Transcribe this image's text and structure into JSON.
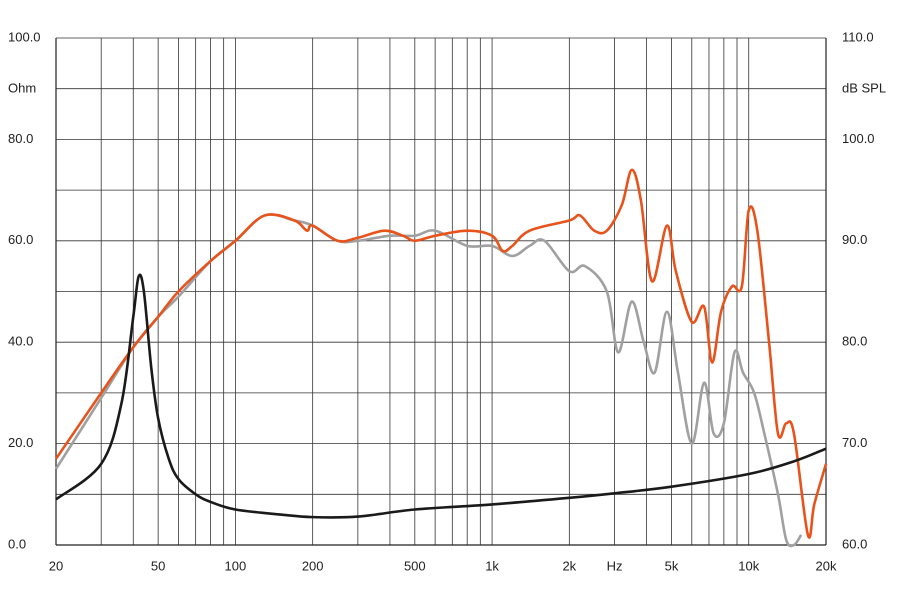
{
  "chart_data": {
    "type": "line",
    "y_label": "Ohm",
    "y2_label": "dB SPL",
    "log_x": true,
    "grid": true,
    "xlim": [
      20,
      20000
    ],
    "ylim": [
      0,
      100
    ],
    "y2lim": [
      60,
      110
    ],
    "xticks": [
      20,
      50,
      100,
      200,
      500,
      {
        "value": 1000,
        "label": "1k"
      },
      {
        "value": 2000,
        "label": "2k"
      },
      {
        "value": 3000,
        "label": "Hz"
      },
      {
        "value": 5000,
        "label": "5k"
      },
      {
        "value": 10000,
        "label": "10k"
      },
      {
        "value": 20000,
        "label": "20k"
      }
    ],
    "xgrid": [
      20,
      30,
      40,
      50,
      60,
      70,
      80,
      90,
      100,
      200,
      300,
      400,
      500,
      600,
      700,
      800,
      900,
      1000,
      2000,
      3000,
      4000,
      5000,
      6000,
      7000,
      8000,
      9000,
      10000,
      20000
    ],
    "yticks": [
      {
        "value": 0,
        "label": "0.0"
      },
      {
        "value": 20,
        "label": "20.0"
      },
      {
        "value": 40,
        "label": "40.0"
      },
      {
        "value": 60,
        "label": "60.0"
      },
      {
        "value": 80,
        "label": "80.0"
      },
      {
        "value": 100,
        "label": "100.0"
      }
    ],
    "ygrid": [
      10,
      30,
      50,
      70,
      90
    ],
    "y2ticks": [
      {
        "value": 60,
        "label": "60.0"
      },
      {
        "value": 70,
        "label": "70.0"
      },
      {
        "value": 80,
        "label": "80.0"
      },
      {
        "value": 90,
        "label": "90.0"
      },
      {
        "value": 100,
        "label": "100.0"
      },
      {
        "value": 110,
        "label": "110.0"
      }
    ],
    "series": [
      {
        "color": "#1a1a1a",
        "x": [
          20,
          30,
          36,
          40,
          42,
          44,
          47,
          50,
          55,
          60,
          70,
          80,
          100,
          150,
          200,
          300,
          500,
          1000,
          2000,
          3000,
          5000,
          10000,
          15000,
          20000
        ],
        "values": [
          9,
          16,
          28,
          45,
          53,
          50,
          35,
          25,
          17,
          13,
          10,
          8.5,
          7,
          6,
          5.5,
          5.6,
          7,
          8,
          9.3,
          10.2,
          11.5,
          14,
          16.5,
          19
        ]
      },
      {
        "color": "#e8531c",
        "axis": "y2",
        "x": [
          20,
          30,
          40,
          50,
          60,
          80,
          100,
          130,
          170,
          190,
          200,
          250,
          300,
          380,
          450,
          500,
          600,
          800,
          1000,
          1100,
          1200,
          1400,
          2000,
          2200,
          2500,
          2800,
          3200,
          3500,
          3800,
          4200,
          4800,
          5200,
          6000,
          6700,
          7200,
          7800,
          8600,
          9400,
          10000,
          10800,
          12000,
          13000,
          14000,
          15000,
          17000,
          18000,
          20000
        ],
        "values": [
          68.5,
          75,
          79.5,
          82.5,
          85,
          88,
          90,
          92.5,
          92,
          91,
          91.5,
          90,
          90.3,
          91,
          90.5,
          90,
          90.5,
          91,
          90.5,
          89,
          89.5,
          91,
          92,
          92.5,
          91,
          91,
          93.5,
          97,
          94,
          86,
          91.5,
          87,
          82,
          83.5,
          78,
          83,
          85.5,
          85.5,
          93,
          91,
          80,
          71,
          72,
          71,
          61,
          64,
          68
        ]
      },
      {
        "color": "#a0a0a0",
        "axis": "y2",
        "x": [
          20,
          30,
          40,
          50,
          60,
          80,
          100,
          130,
          170,
          200,
          250,
          300,
          400,
          500,
          600,
          800,
          1000,
          1200,
          1400,
          1600,
          2000,
          2300,
          2800,
          3100,
          3500,
          3900,
          4300,
          4800,
          5300,
          6000,
          6700,
          7300,
          8000,
          8800,
          9500,
          10500,
          11500,
          13000,
          14000,
          15000,
          16000
        ],
        "values": [
          67.5,
          74.5,
          79.5,
          82.5,
          84.5,
          88,
          90,
          92.5,
          92,
          91.5,
          90,
          90,
          90.5,
          90.5,
          91,
          89.5,
          89.5,
          88.5,
          89.5,
          90,
          87,
          87.5,
          85,
          79,
          84,
          80,
          77,
          83,
          77,
          70,
          76,
          71,
          72,
          79,
          77,
          75,
          71,
          65,
          60.5,
          60,
          61
        ]
      }
    ]
  }
}
